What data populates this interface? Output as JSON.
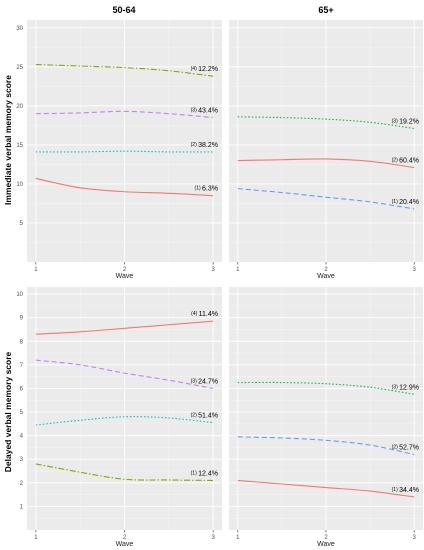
{
  "colors": {
    "red": "#f8766d",
    "green": "#7cae00",
    "cyan": "#00bfc4",
    "purple": "#c77cff",
    "lime": "#00ba38",
    "blue": "#619cff",
    "panel_bg": "#ebebeb",
    "grid_major": "#ffffff"
  },
  "columns": [
    "50-64",
    "65+"
  ],
  "row_labels": [
    "Immediate verbal memory score",
    "Delayed verbal memory score"
  ],
  "chart_data": [
    {
      "type": "line",
      "facet_col": "50-64",
      "facet_row": "Immediate verbal memory score",
      "x": [
        1,
        1.5,
        2,
        2.5,
        3
      ],
      "xlabel": "Wave",
      "ylabel": "Immediate verbal memory score",
      "xticks": [
        1,
        2,
        3
      ],
      "yticks": [
        5,
        10,
        15,
        20,
        25,
        30
      ],
      "xlim": [
        0.9,
        3.1
      ],
      "ylim": [
        0,
        31
      ],
      "grid": true,
      "series": [
        {
          "values": [
            10.7,
            9.5,
            9.0,
            8.8,
            8.5
          ],
          "color": "#f8766d",
          "dash": "solid",
          "label_sup": "(1)",
          "label": "6.3%"
        },
        {
          "values": [
            14.1,
            14.1,
            14.2,
            14.1,
            14.1
          ],
          "color": "#00bfc4",
          "dash": "dot",
          "label_sup": "(2)",
          "label": "38.2%"
        },
        {
          "values": [
            19.0,
            19.1,
            19.3,
            19.0,
            18.5
          ],
          "color": "#c77cff",
          "dash": "dash",
          "label_sup": "(3)",
          "label": "43.4%"
        },
        {
          "values": [
            25.3,
            25.1,
            24.9,
            24.5,
            23.8
          ],
          "color": "#7cae00",
          "dash": "dashdot",
          "label_sup": "(4)",
          "label": "12.2%"
        }
      ]
    },
    {
      "type": "line",
      "facet_col": "65+",
      "facet_row": "Immediate verbal memory score",
      "x": [
        1,
        1.5,
        2,
        2.5,
        3
      ],
      "xlabel": "Wave",
      "ylabel": "",
      "xticks": [
        1,
        2,
        3
      ],
      "yticks": [],
      "xlim": [
        0.9,
        3.1
      ],
      "ylim": [
        0,
        31
      ],
      "grid": true,
      "series": [
        {
          "values": [
            13.0,
            13.1,
            13.2,
            12.9,
            12.1
          ],
          "color": "#f8766d",
          "dash": "solid",
          "label_sup": "(2)",
          "label": "60.4%"
        },
        {
          "values": [
            9.4,
            8.9,
            8.3,
            7.7,
            6.8
          ],
          "color": "#619cff",
          "dash": "dash",
          "label_sup": "(1)",
          "label": "20.4%"
        },
        {
          "values": [
            18.6,
            18.5,
            18.3,
            17.9,
            17.1
          ],
          "color": "#00ba38",
          "dash": "dot",
          "label_sup": "(3)",
          "label": "19.2%"
        }
      ]
    },
    {
      "type": "line",
      "facet_col": "50-64",
      "facet_row": "Delayed verbal memory score",
      "x": [
        1,
        1.5,
        2,
        2.5,
        3
      ],
      "xlabel": "Wave",
      "ylabel": "Delayed verbal memory score",
      "xticks": [
        1,
        2,
        3
      ],
      "yticks": [
        1,
        2,
        3,
        4,
        5,
        6,
        7,
        8,
        9,
        10
      ],
      "xlim": [
        0.9,
        3.1
      ],
      "ylim": [
        0,
        10.3
      ],
      "grid": true,
      "series": [
        {
          "values": [
            8.3,
            8.4,
            8.55,
            8.7,
            8.85
          ],
          "color": "#f8766d",
          "dash": "solid",
          "label_sup": "(4)",
          "label": "11.4%"
        },
        {
          "values": [
            7.2,
            7.0,
            6.65,
            6.35,
            6.0
          ],
          "color": "#c77cff",
          "dash": "dash",
          "label_sup": "(3)",
          "label": "24.7%"
        },
        {
          "values": [
            4.45,
            4.65,
            4.8,
            4.75,
            4.55
          ],
          "color": "#00bfc4",
          "dash": "dot",
          "label_sup": "(2)",
          "label": "51.4%"
        },
        {
          "values": [
            2.8,
            2.45,
            2.15,
            2.12,
            2.1
          ],
          "color": "#7cae00",
          "dash": "dashdot",
          "label_sup": "(1)",
          "label": "12.4%"
        }
      ]
    },
    {
      "type": "line",
      "facet_col": "65+",
      "facet_row": "Delayed verbal memory score",
      "x": [
        1,
        1.5,
        2,
        2.5,
        3
      ],
      "xlabel": "Wave",
      "ylabel": "",
      "xticks": [
        1,
        2,
        3
      ],
      "yticks": [],
      "xlim": [
        0.9,
        3.1
      ],
      "ylim": [
        0,
        10.3
      ],
      "grid": true,
      "series": [
        {
          "values": [
            6.25,
            6.25,
            6.2,
            6.05,
            5.75
          ],
          "color": "#00ba38",
          "dash": "dot",
          "label_sup": "(3)",
          "label": "12.9%"
        },
        {
          "values": [
            3.95,
            3.9,
            3.8,
            3.6,
            3.2
          ],
          "color": "#619cff",
          "dash": "dash",
          "label_sup": "(2)",
          "label": "52.7%"
        },
        {
          "values": [
            2.1,
            1.95,
            1.8,
            1.65,
            1.4
          ],
          "color": "#f8766d",
          "dash": "solid",
          "label_sup": "(1)",
          "label": "34.4%"
        }
      ]
    }
  ]
}
